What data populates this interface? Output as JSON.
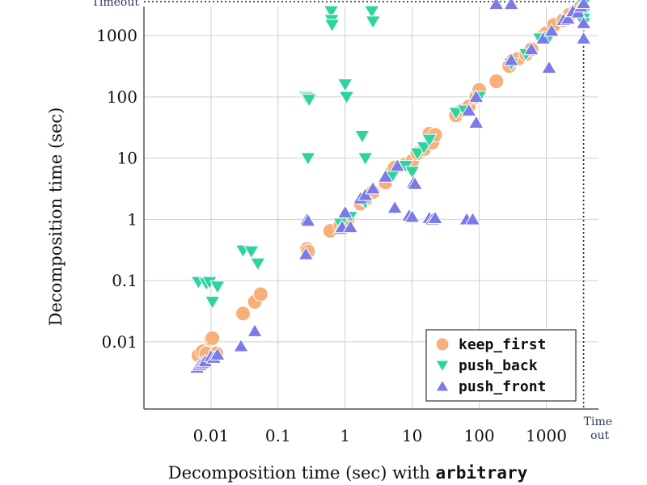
{
  "chart_data": {
    "type": "scatter",
    "scale": "log-log",
    "xlabel_prefix": "Decomposition time (sec) with ",
    "xlabel_code": "arbitrary",
    "ylabel": "Decomposition time (sec)",
    "x_ticks": [
      {
        "value": 0.01,
        "label": "0.01"
      },
      {
        "value": 0.1,
        "label": "0.1"
      },
      {
        "value": 1,
        "label": "1"
      },
      {
        "value": 10,
        "label": "10"
      },
      {
        "value": 100,
        "label": "100"
      },
      {
        "value": 1000,
        "label": "1000"
      }
    ],
    "y_ticks": [
      {
        "value": 0.01,
        "label": "0.01"
      },
      {
        "value": 0.1,
        "label": "0.1"
      },
      {
        "value": 1,
        "label": "1"
      },
      {
        "value": 10,
        "label": "10"
      },
      {
        "value": 100,
        "label": "100"
      },
      {
        "value": 1000,
        "label": "1000"
      }
    ],
    "xlim": [
      0.001,
      6000
    ],
    "ylim": [
      0.0008,
      3000
    ],
    "timeout_value": 3600,
    "timeout_y_label": "Timeout",
    "timeout_x_label": [
      "Time",
      "out"
    ],
    "grid": true,
    "legend_position": "bottom-right",
    "series": [
      {
        "name": "keep_first",
        "marker": "circle",
        "color": "#f7b07a",
        "points": [
          [
            0.0065,
            0.006
          ],
          [
            0.0075,
            0.007
          ],
          [
            0.0085,
            0.0065
          ],
          [
            0.01,
            0.011
          ],
          [
            0.012,
            0.0065
          ],
          [
            0.0105,
            0.0115
          ],
          [
            0.03,
            0.029
          ],
          [
            0.045,
            0.045
          ],
          [
            0.055,
            0.06
          ],
          [
            0.27,
            0.33
          ],
          [
            0.28,
            0.3
          ],
          [
            0.6,
            0.65
          ],
          [
            0.85,
            0.8
          ],
          [
            1,
            0.9
          ],
          [
            1.1,
            1
          ],
          [
            1.7,
            1.8
          ],
          [
            2,
            2.1
          ],
          [
            2.6,
            2.8
          ],
          [
            4,
            4
          ],
          [
            5,
            6
          ],
          [
            5.5,
            7
          ],
          [
            8,
            8
          ],
          [
            10,
            9
          ],
          [
            12,
            12
          ],
          [
            15,
            14
          ],
          [
            18,
            25
          ],
          [
            20,
            18
          ],
          [
            22,
            24
          ],
          [
            45,
            50
          ],
          [
            55,
            60
          ],
          [
            70,
            70
          ],
          [
            90,
            100
          ],
          [
            100,
            130
          ],
          [
            180,
            180
          ],
          [
            280,
            320
          ],
          [
            320,
            400
          ],
          [
            380,
            420
          ],
          [
            500,
            500
          ],
          [
            600,
            600
          ],
          [
            900,
            1000
          ],
          [
            1000,
            1100
          ],
          [
            1300,
            1500
          ],
          [
            1800,
            1800
          ],
          [
            2200,
            2200
          ],
          [
            2800,
            2600
          ],
          [
            3300,
            3000
          ]
        ]
      },
      {
        "name": "push_back",
        "marker": "triangle-down",
        "color": "#2ed3a0",
        "points": [
          [
            0.0065,
            0.095
          ],
          [
            0.0085,
            0.09
          ],
          [
            0.0095,
            0.095
          ],
          [
            0.0105,
            0.045
          ],
          [
            0.0125,
            0.08
          ],
          [
            0.03,
            0.31
          ],
          [
            0.04,
            0.3
          ],
          [
            0.05,
            0.19
          ],
          [
            0.26,
            100
          ],
          [
            0.28,
            95
          ],
          [
            0.29,
            90
          ],
          [
            0.28,
            10
          ],
          [
            0.62,
            2500
          ],
          [
            0.63,
            1800
          ],
          [
            0.64,
            1500
          ],
          [
            1,
            160
          ],
          [
            1.05,
            100
          ],
          [
            2.5,
            2500
          ],
          [
            2.6,
            1700
          ],
          [
            1.8,
            23
          ],
          [
            2,
            10
          ],
          [
            0.85,
            0.85
          ],
          [
            1.2,
            1.1
          ],
          [
            2,
            1.9
          ],
          [
            5,
            5
          ],
          [
            8,
            7.5
          ],
          [
            10,
            6
          ],
          [
            12,
            12
          ],
          [
            15,
            15
          ],
          [
            18,
            20
          ],
          [
            45,
            55
          ],
          [
            60,
            60
          ],
          [
            100,
            100
          ],
          [
            300,
            350
          ],
          [
            500,
            500
          ],
          [
            800,
            900
          ],
          [
            1100,
            950
          ],
          [
            3600,
            3300
          ],
          [
            3600,
            2600
          ],
          [
            3600,
            2300
          ],
          [
            3600,
            1900
          ],
          [
            3600,
            1600
          ]
        ]
      },
      {
        "name": "push_front",
        "marker": "triangle-up",
        "color": "#7b7be8",
        "points": [
          [
            0.0062,
            0.0038
          ],
          [
            0.0068,
            0.0042
          ],
          [
            0.0075,
            0.0045
          ],
          [
            0.0082,
            0.0048
          ],
          [
            0.01,
            0.0058
          ],
          [
            0.011,
            0.0055
          ],
          [
            0.0125,
            0.0062
          ],
          [
            0.028,
            0.0085
          ],
          [
            0.045,
            0.015
          ],
          [
            0.26,
            0.27
          ],
          [
            0.27,
            1
          ],
          [
            0.28,
            0.95
          ],
          [
            0.85,
            0.7
          ],
          [
            0.9,
            0.75
          ],
          [
            1,
            1.3
          ],
          [
            1.2,
            0.75
          ],
          [
            1.7,
            2.2
          ],
          [
            2,
            2.5
          ],
          [
            2.6,
            3.2
          ],
          [
            4,
            5
          ],
          [
            5.5,
            1.55
          ],
          [
            6,
            7.5
          ],
          [
            9,
            1.15
          ],
          [
            10,
            1.1
          ],
          [
            10.5,
            4
          ],
          [
            11,
            3.8
          ],
          [
            18,
            1.05
          ],
          [
            20,
            1
          ],
          [
            22,
            1.05
          ],
          [
            65,
            1
          ],
          [
            80,
            1
          ],
          [
            70,
            60
          ],
          [
            90,
            38
          ],
          [
            90,
            100
          ],
          [
            180,
            3300
          ],
          [
            300,
            3300
          ],
          [
            300,
            400
          ],
          [
            600,
            600
          ],
          [
            900,
            900
          ],
          [
            1100,
            300
          ],
          [
            1200,
            1200
          ],
          [
            1800,
            1800
          ],
          [
            2100,
            1900
          ],
          [
            2500,
            2500
          ],
          [
            3000,
            2400
          ],
          [
            3300,
            3000
          ],
          [
            3600,
            3400
          ],
          [
            3600,
            1600
          ],
          [
            3600,
            900
          ]
        ]
      }
    ]
  }
}
